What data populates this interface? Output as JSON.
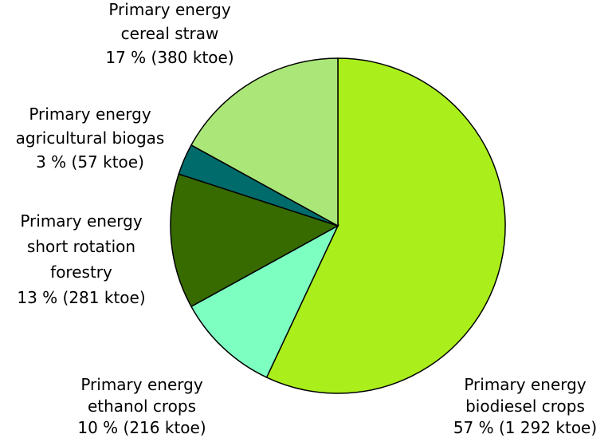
{
  "chart_data": {
    "type": "pie",
    "title": "",
    "start": "12 o'clock",
    "direction": "clockwise",
    "slices": [
      {
        "lines": [
          "Primary energy",
          "biodiesel crops",
          "57 % (1 292 ktoe)"
        ],
        "percent": 57,
        "value_ktoe": 1292,
        "color": "#aaee1c"
      },
      {
        "lines": [
          "Primary energy",
          "ethanol crops",
          "10 % (216 ktoe)"
        ],
        "percent": 10,
        "value_ktoe": 216,
        "color": "#7effc2"
      },
      {
        "lines": [
          "Primary energy",
          "short rotation",
          "forestry",
          "13 % (281 ktoe)"
        ],
        "percent": 13,
        "value_ktoe": 281,
        "color": "#376b00"
      },
      {
        "lines": [
          "Primary energy",
          "agricultural biogas",
          "3 % (57 ktoe)"
        ],
        "percent": 3,
        "value_ktoe": 57,
        "color": "#006b6b"
      },
      {
        "lines": [
          "Primary energy",
          "cereal straw",
          "17 % (380 ktoe)"
        ],
        "percent": 17,
        "value_ktoe": 380,
        "color": "#aae678"
      }
    ]
  }
}
